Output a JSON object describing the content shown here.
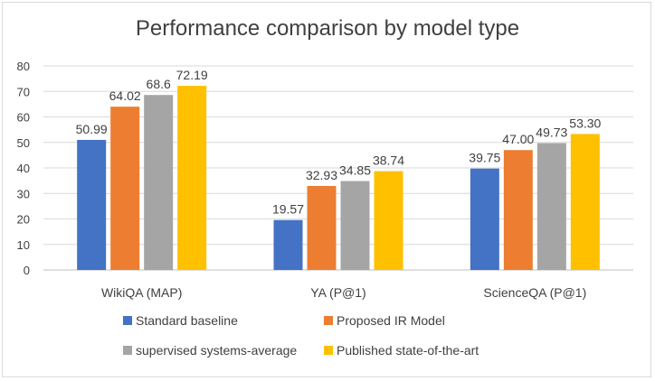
{
  "chart_data": {
    "type": "bar",
    "title": "Performance comparison by model type",
    "xlabel": "",
    "ylabel": "",
    "ylim": [
      0,
      80
    ],
    "yticks": [
      0,
      10,
      20,
      30,
      40,
      50,
      60,
      70,
      80
    ],
    "grid": true,
    "legend_position": "bottom",
    "categories": [
      "WikiQA (MAP)",
      "YA (P@1)",
      "ScienceQA (P@1)"
    ],
    "series": [
      {
        "name": "Standard baseline",
        "color": "#4472c4",
        "values": [
          50.99,
          19.57,
          39.75
        ],
        "labels": [
          "50.99",
          "19.57",
          "39.75"
        ]
      },
      {
        "name": "Proposed IR Model",
        "color": "#ed7d31",
        "values": [
          64.02,
          32.93,
          47.0
        ],
        "labels": [
          "64.02",
          "32.93",
          "47.00"
        ]
      },
      {
        "name": "supervised systems-average",
        "color": "#a5a5a5",
        "values": [
          68.6,
          34.85,
          49.73
        ],
        "labels": [
          "68.6",
          "34.85",
          "49.73"
        ]
      },
      {
        "name": "Published state-of-the-art",
        "color": "#ffc000",
        "values": [
          72.19,
          38.74,
          53.3
        ],
        "labels": [
          "72.19",
          "38.74",
          "53.30"
        ]
      }
    ]
  }
}
